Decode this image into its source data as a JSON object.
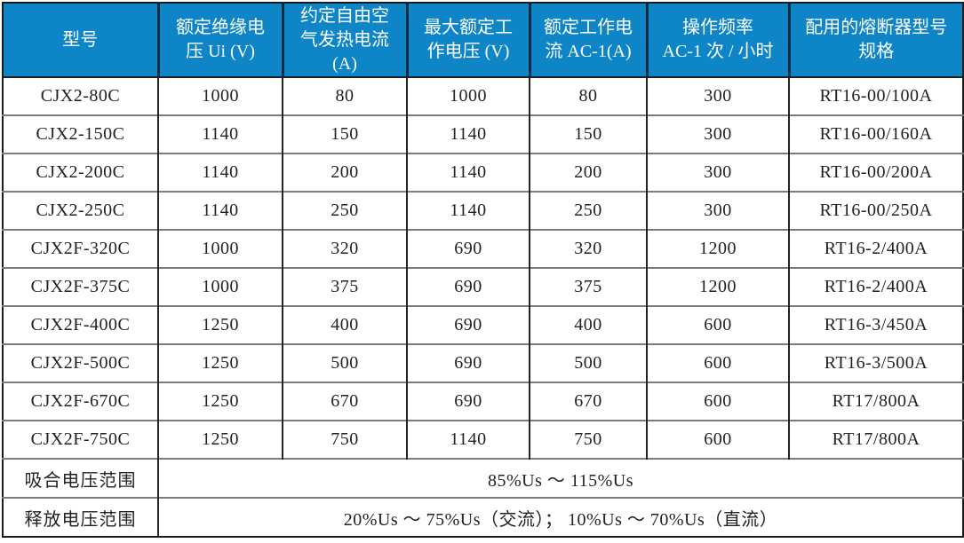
{
  "colors": {
    "header_bg": "#0d85c6",
    "header_text": "#ffffff",
    "header_divider": "#0d2a40",
    "outer_border": "#1a1a1a",
    "row_divider": "#7c7c7c",
    "column_divider": "#242424",
    "body_text": "#222222"
  },
  "table": {
    "columns": [
      {
        "label": "型号",
        "lines": [
          "型号"
        ]
      },
      {
        "label": "额定绝缘电压 Ui (V)",
        "lines": [
          "额定绝缘电",
          "压 Ui (V)"
        ]
      },
      {
        "label": "约定自由空气发热电流 (A)",
        "lines": [
          "约定自由空",
          "气发热电流",
          "(A)"
        ]
      },
      {
        "label": "最大额定工作电压 (V)",
        "lines": [
          "最大额定工",
          "作电压 (V)"
        ]
      },
      {
        "label": "额定工作电流 AC-1(A)",
        "lines": [
          "额定工作电",
          "流 AC-1(A)"
        ]
      },
      {
        "label": "操作频率 AC-1 次 / 小时",
        "lines": [
          "操作频率",
          "AC-1 次 / 小时"
        ]
      },
      {
        "label": "配用的熔断器型号规格",
        "lines": [
          "配用的熔断器型号",
          "规格"
        ]
      }
    ],
    "rows": [
      [
        "CJX2-80C",
        "1000",
        "80",
        "1000",
        "80",
        "300",
        "RT16-00/100A"
      ],
      [
        "CJX2-150C",
        "1140",
        "150",
        "1140",
        "150",
        "300",
        "RT16-00/160A"
      ],
      [
        "CJX2-200C",
        "1140",
        "200",
        "1140",
        "200",
        "300",
        "RT16-00/200A"
      ],
      [
        "CJX2-250C",
        "1140",
        "250",
        "1140",
        "250",
        "300",
        "RT16-00/250A"
      ],
      [
        "CJX2F-320C",
        "1000",
        "320",
        "690",
        "320",
        "1200",
        "RT16-2/400A"
      ],
      [
        "CJX2F-375C",
        "1000",
        "375",
        "690",
        "375",
        "1200",
        "RT16-2/400A"
      ],
      [
        "CJX2F-400C",
        "1250",
        "400",
        "690",
        "400",
        "600",
        "RT16-3/450A"
      ],
      [
        "CJX2F-500C",
        "1250",
        "500",
        "690",
        "500",
        "600",
        "RT16-3/500A"
      ],
      [
        "CJX2F-670C",
        "1250",
        "670",
        "690",
        "670",
        "600",
        "RT17/800A"
      ],
      [
        "CJX2F-750C",
        "1250",
        "750",
        "1140",
        "750",
        "600",
        "RT17/800A"
      ]
    ],
    "footer_rows": [
      {
        "label": "吸合电压范围",
        "value": "85%Us ～ 115%Us"
      },
      {
        "label": "释放电压范围",
        "value": "20%Us ～ 75%Us（交流）； 10%Us ～ 70%Us（直流）"
      }
    ]
  }
}
